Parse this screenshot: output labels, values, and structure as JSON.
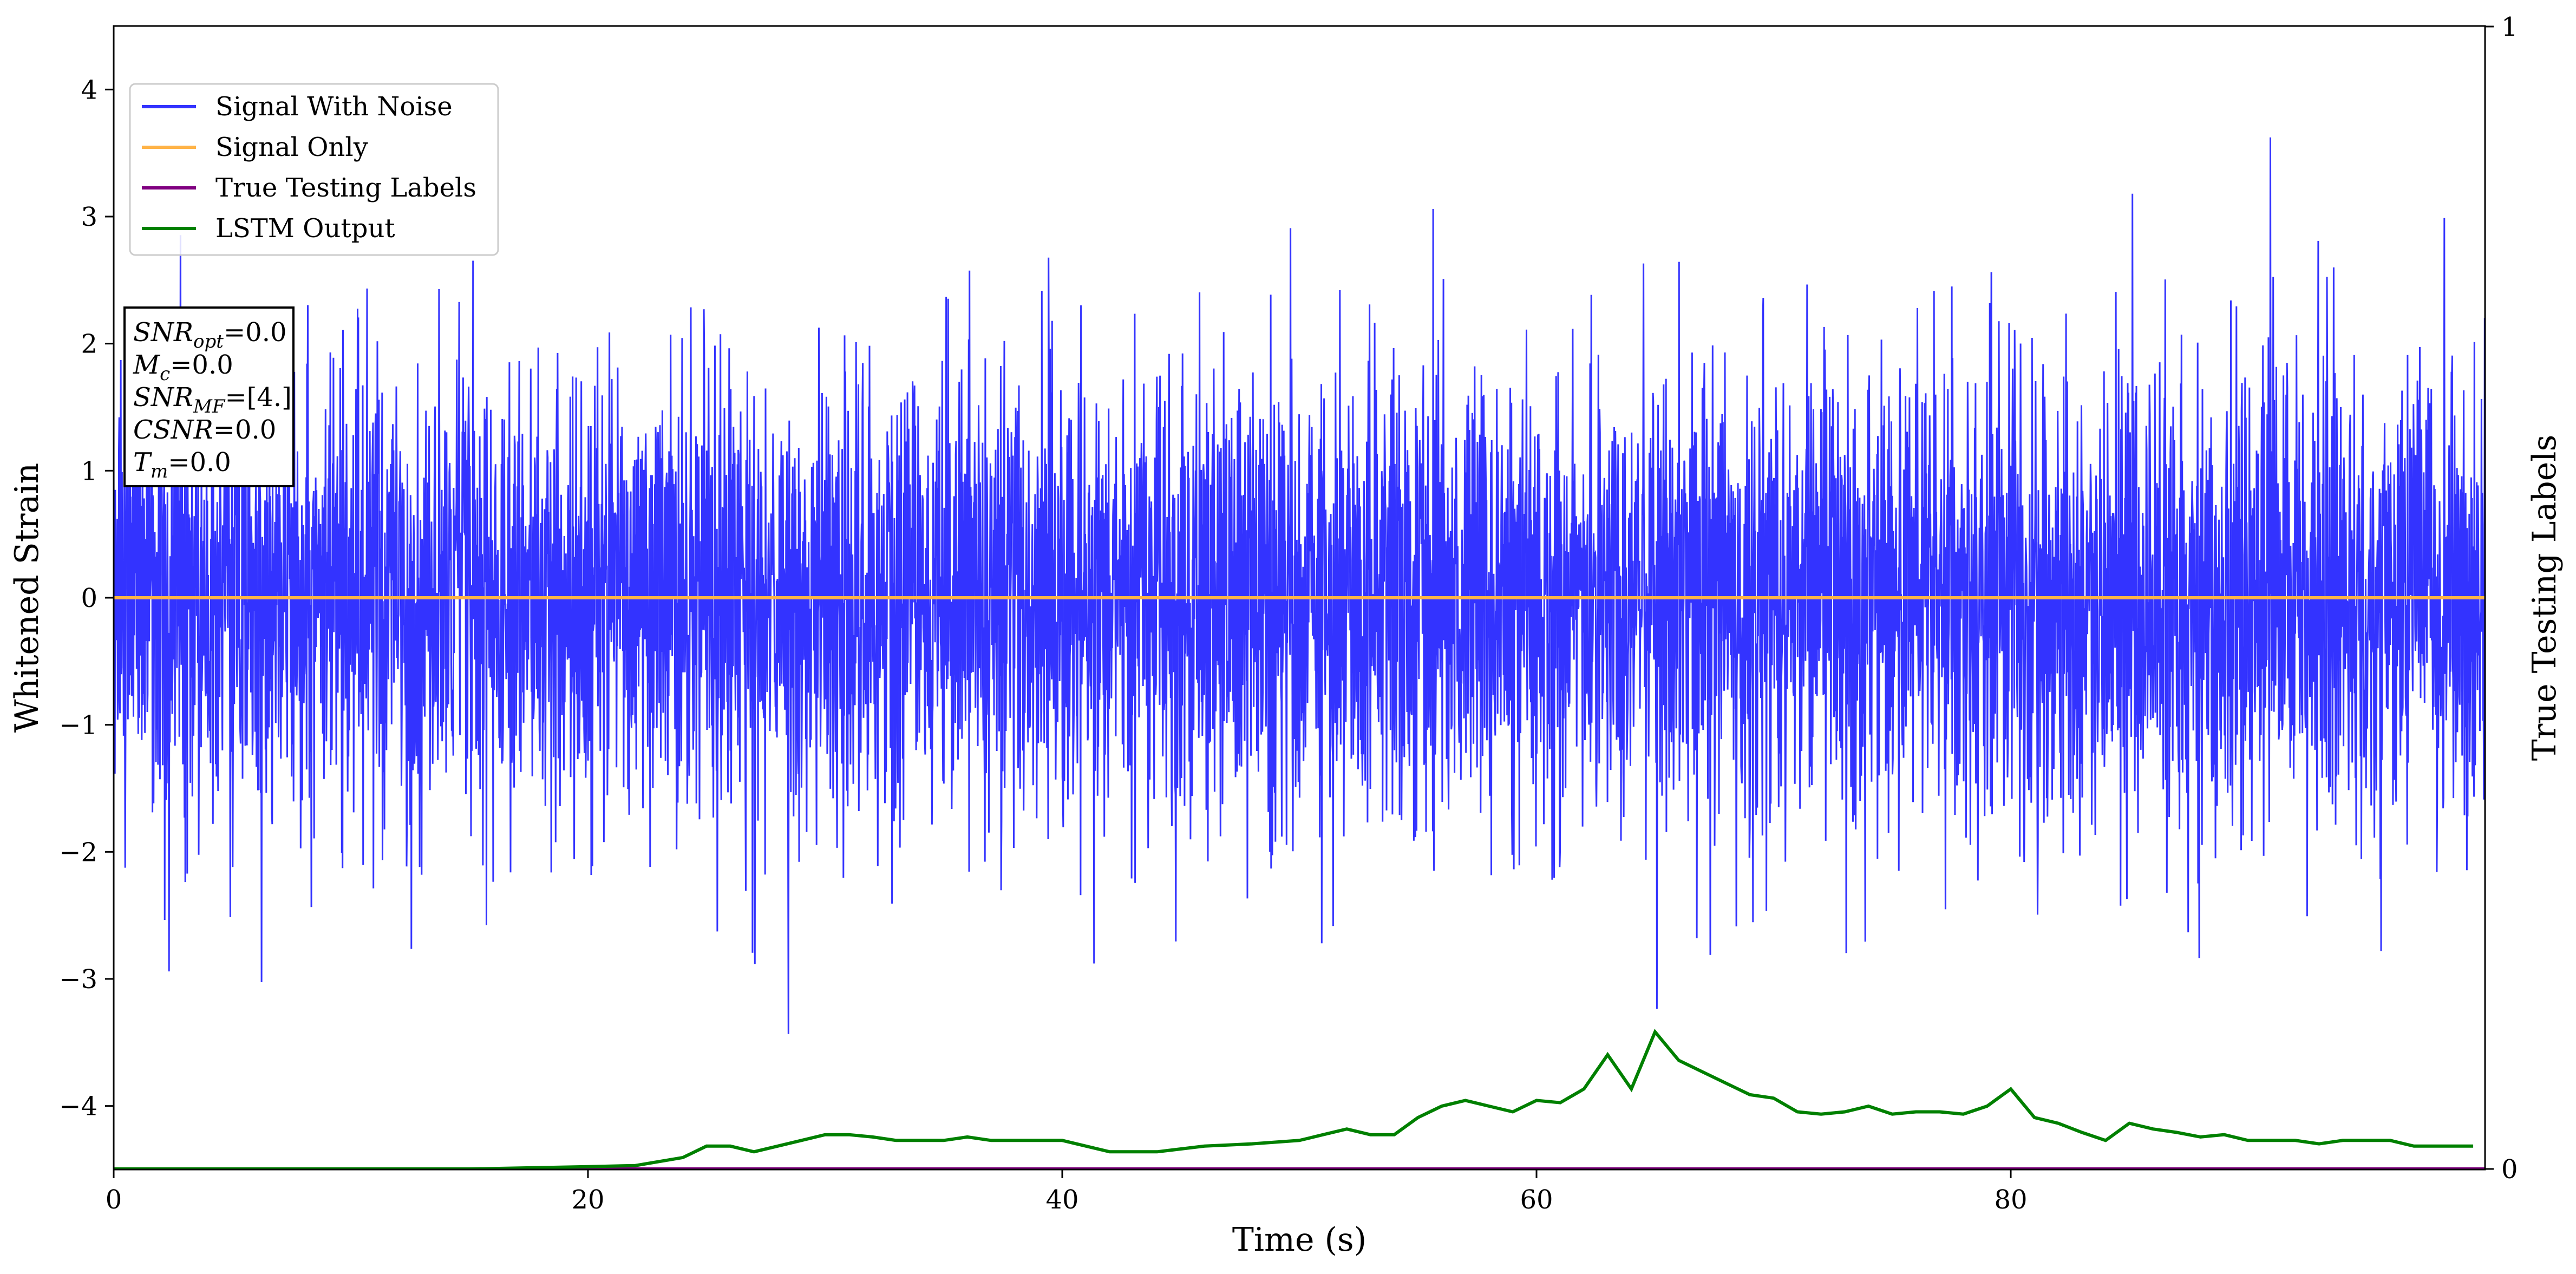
{
  "chart_data": {
    "type": "line",
    "xlabel": "Time (s)",
    "ylabel": "Whitened Strain",
    "y2label": "True Testing Labels",
    "xlim": [
      0,
      100
    ],
    "ylim": [
      -4.5,
      4.5
    ],
    "y2lim": [
      0,
      1
    ],
    "x_ticks": [
      0,
      20,
      40,
      60,
      80
    ],
    "y_ticks": [
      -4,
      -3,
      -2,
      -1,
      0,
      1,
      2,
      3,
      4
    ],
    "y2_ticks": [
      0,
      1
    ],
    "legend_placement": "top-left",
    "annotation": {
      "lines": [
        {
          "base": "SNR",
          "sub": "opt",
          "value": "=0.0"
        },
        {
          "base": "M",
          "sub": "c",
          "value": "=0.0"
        },
        {
          "base": "SNR",
          "sub": "MF",
          "value": "=[4.]"
        },
        {
          "base": "CSNR",
          "sub": "",
          "value": "=0.0"
        },
        {
          "base": "T",
          "sub": "m",
          "value": "=0.0"
        }
      ]
    },
    "series": [
      {
        "name": "Signal With Noise",
        "color": "#3333ff",
        "axis": "left",
        "style": "gaussian-noise",
        "noise_std": 0.9,
        "x_range": [
          0,
          100
        ]
      },
      {
        "name": "Signal Only",
        "color": "#ffb347",
        "axis": "left",
        "x": [
          0,
          100
        ],
        "y": [
          0,
          0
        ]
      },
      {
        "name": "True Testing Labels",
        "color": "#800080",
        "axis": "right",
        "x": [
          0,
          100
        ],
        "y": [
          0,
          0
        ]
      },
      {
        "name": "LSTM Output",
        "color": "#008000",
        "axis": "right",
        "x": [
          0,
          5,
          10,
          15,
          20,
          22,
          24,
          25,
          26,
          27,
          28,
          29,
          30,
          31,
          32,
          33,
          34,
          35,
          36,
          37,
          38,
          40,
          42,
          44,
          46,
          48,
          50,
          51,
          52,
          53,
          54,
          55,
          56,
          57,
          58,
          59,
          60,
          61,
          62,
          63,
          64,
          65,
          66,
          67,
          68,
          69,
          70,
          71,
          72,
          73,
          74,
          75,
          76,
          77,
          78,
          79,
          80,
          81,
          82,
          83,
          84,
          85,
          86,
          87,
          88,
          89,
          90,
          91,
          92,
          93,
          94,
          95,
          96,
          97,
          98,
          99.5
        ],
        "y": [
          0.0,
          0.0,
          0.0,
          0.0,
          0.002,
          0.003,
          0.01,
          0.02,
          0.02,
          0.015,
          0.02,
          0.025,
          0.03,
          0.03,
          0.028,
          0.025,
          0.025,
          0.025,
          0.028,
          0.025,
          0.025,
          0.025,
          0.015,
          0.015,
          0.02,
          0.022,
          0.025,
          0.03,
          0.035,
          0.03,
          0.03,
          0.045,
          0.055,
          0.06,
          0.055,
          0.05,
          0.06,
          0.058,
          0.07,
          0.1,
          0.07,
          0.12,
          0.095,
          0.085,
          0.075,
          0.065,
          0.062,
          0.05,
          0.048,
          0.05,
          0.055,
          0.048,
          0.05,
          0.05,
          0.048,
          0.055,
          0.07,
          0.045,
          0.04,
          0.032,
          0.025,
          0.04,
          0.035,
          0.032,
          0.028,
          0.03,
          0.025,
          0.025,
          0.025,
          0.022,
          0.025,
          0.025,
          0.025,
          0.02,
          0.02,
          0.02
        ]
      }
    ]
  }
}
